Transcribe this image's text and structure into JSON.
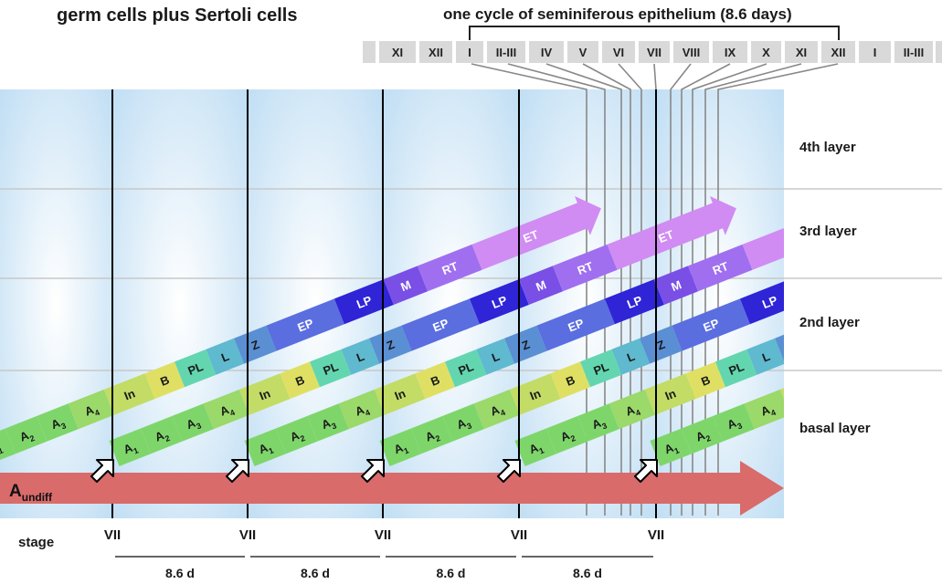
{
  "titles": {
    "main": "germ cells plus Sertoli cells",
    "cycle": "one cycle of seminiferous epithelium (8.6 days)"
  },
  "stage_strip": [
    "XI",
    "XII",
    "I",
    "II-III",
    "IV",
    "V",
    "VI",
    "VII",
    "VIII",
    "IX",
    "X",
    "XI",
    "XII",
    "I",
    "II-III"
  ],
  "layers": [
    "4th layer",
    "3rd layer",
    "2nd layer",
    "basal layer"
  ],
  "undiff": {
    "main": "A",
    "sub": "undiff"
  },
  "axis": {
    "label": "stage",
    "stage_marks": [
      "VII",
      "VII",
      "VII",
      "VII",
      "VII"
    ],
    "durations": [
      "8.6 d",
      "8.6 d",
      "8.6 d",
      "8.6 d"
    ]
  },
  "cell_sequence": [
    {
      "label": "A1",
      "main": "A",
      "sub": "1",
      "color": "#7ed66b"
    },
    {
      "label": "A2",
      "main": "A",
      "sub": "2",
      "color": "#7ed66b"
    },
    {
      "label": "A3",
      "main": "A",
      "sub": "3",
      "color": "#7ed66b"
    },
    {
      "label": "A4",
      "main": "A",
      "sub": "4",
      "color": "#9ad96a"
    },
    {
      "label": "In",
      "main": "In",
      "sub": "",
      "color": "#c2dc66"
    },
    {
      "label": "B",
      "main": "B",
      "sub": "",
      "color": "#dfe063"
    },
    {
      "label": "PL",
      "main": "PL",
      "sub": "",
      "color": "#63d6b0"
    },
    {
      "label": "L",
      "main": "L",
      "sub": "",
      "color": "#5fb9cf"
    },
    {
      "label": "Z",
      "main": "Z",
      "sub": "",
      "color": "#5a8fd3"
    },
    {
      "label": "EP",
      "main": "EP",
      "sub": "",
      "color": "#5a6ee0"
    },
    {
      "label": "LP",
      "main": "LP",
      "sub": "",
      "color": "#2f24d6"
    },
    {
      "label": "M",
      "main": "M",
      "sub": "",
      "color": "#7a4fe6"
    },
    {
      "label": "RT",
      "main": "RT",
      "sub": "",
      "color": "#a06ff0"
    },
    {
      "label": "ET",
      "main": "ET",
      "sub": "",
      "color": "#d08cf3"
    }
  ],
  "colors": {
    "undiff_arrow": "#d96b6b",
    "background_light": "#cfe6f7",
    "stage_box": "#d9d9d9"
  }
}
